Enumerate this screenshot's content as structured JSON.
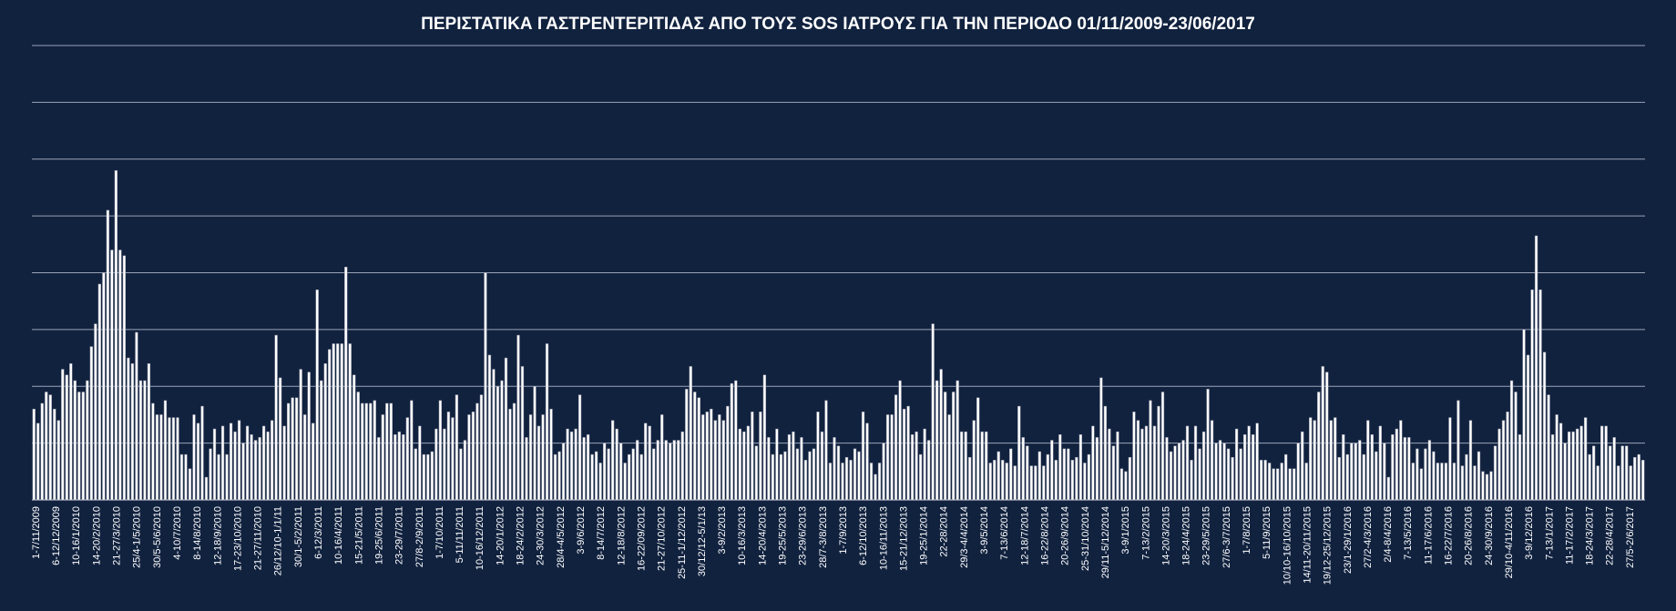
{
  "colors": {
    "background": "#11223f",
    "bar_fill": "#ffffff",
    "bar_stroke": "#8a8fa0",
    "grid": "#9aa3b5",
    "text": "#ffffff"
  },
  "chart_data": {
    "type": "bar",
    "title": "ΠΕΡΙΣΤΑΤΙΚΑ ΓΑΣΤΡΕΝΤΕΡΙΤΙΔΑΣ ΑΠΟ ΤΟΥΣ SOS ΙΑΤΡΟΥΣ ΓΙΑ ΤΗΝ ΠΕΡΙΟΔΟ 01/11/2009-23/06/2017",
    "xlabel": "",
    "ylabel": "",
    "ylim": [
      0,
      80
    ],
    "yticks": [
      0,
      10,
      20,
      30,
      40,
      50,
      60,
      70,
      80
    ],
    "show_y_tick_labels": false,
    "grid": true,
    "legend": "none",
    "x_tick_labels": [
      "1-7/11/2009",
      "6-12/12/2009",
      "10-16/1/2010",
      "14-20/2/2010",
      "21-27/3/2010",
      "25/4-1/5/2010",
      "30/5-5/6/2010",
      "4-10/7/2010",
      "8-14/8/2010",
      "12-18/9/2010",
      "17-23/10/2010",
      "21-27/11/2010",
      "26/12/10-1/1/11",
      "30/1-5/2/2011",
      "6-12/3/2011",
      "10-16/4/2011",
      "15-21/5/2011",
      "19-25/6/2011",
      "23-29/7/2011",
      "27/8-2/9/2011",
      "1-7/10/2011",
      "5-11/11/2011",
      "10-16/12/2011",
      "14-20/1/2012",
      "18-24/2/2012",
      "24-30/3/2012",
      "28/4-4/5/2012",
      "3-9/6/2012",
      "8-14/7/2012",
      "12-18/8/2012",
      "16-22/09/2012",
      "21-27/10/2012",
      "25-11-1/12/2012",
      "30/12/12-5/1/13",
      "3-9/2/2013",
      "10-16/3/2013",
      "14-20/4/2013",
      "19-25/5/2013",
      "23-29/6/2013",
      "28/7-3/8/2013",
      "1-7/9/2013",
      "6-12/10/2013",
      "10-16/11/2013",
      "15-21/12/2013",
      "19-25/1/2014",
      "22-28/2014",
      "29/3-4/4/2014",
      "3-9/5/2014",
      "7-13/6/2014",
      "12-18/7/2014",
      "16-22/8/2014",
      "20-26/9/2014",
      "25-31/10/2014",
      "29/11-5/12/2014",
      "3-9/1/2015",
      "7-13/2/2015",
      "14-20/3/2015",
      "18-24/4/2015",
      "23-29/5/2015",
      "27/6-3/7/2015",
      "1-7/8/2015",
      "5-11/9/2015",
      "10/10-16/10/2015",
      "14/11-20/11/2015",
      "19/12-25/12/2015",
      "23/1-29/1/2016",
      "27/2-4/3/2016",
      "2/4-8/4/2016",
      "7-13/5/2016",
      "11-17/6/2016",
      "16-22/7/2016",
      "20-26/8/2016",
      "24-30/9/2016",
      "29/10-4/11/2016",
      "3-9/12/2016",
      "7-13/1/2017",
      "11-17/2/2017",
      "18-24/3/2017",
      "22-28/4/2017",
      "27/5-2/6/2017"
    ],
    "values": [
      16,
      13.5,
      17,
      19,
      18.5,
      16,
      14,
      23,
      22,
      24,
      21,
      19,
      19,
      21,
      27,
      31,
      38,
      40,
      51,
      44,
      58,
      44,
      43,
      25,
      24,
      29.5,
      21,
      21,
      24,
      17,
      15,
      15,
      17.5,
      14.5,
      14.5,
      14.5,
      8,
      8,
      5.5,
      15,
      13.5,
      16.5,
      4,
      9,
      12.5,
      8,
      13,
      8,
      13.5,
      12,
      14,
      10,
      13,
      11.5,
      10.5,
      11,
      13,
      12,
      14,
      29,
      21.5,
      13,
      17,
      18,
      18,
      23,
      15,
      22.5,
      13.5,
      37,
      21,
      24,
      26.5,
      27.5,
      27.5,
      27.5,
      41,
      27.5,
      22,
      19,
      17,
      17,
      17,
      17.5,
      11,
      15,
      17,
      17,
      11.5,
      12,
      11.5,
      14.5,
      17.5,
      9,
      13,
      8,
      8,
      8.5,
      12.5,
      17.5,
      12.5,
      15.5,
      14.5,
      18.5,
      9,
      10.5,
      15,
      15.5,
      17,
      18.5,
      40,
      25.5,
      23,
      20,
      21,
      25,
      16,
      17,
      29,
      23.5,
      11,
      15,
      20,
      13,
      15,
      27.5,
      16,
      8,
      8.5,
      10,
      12.5,
      12,
      12.5,
      18.5,
      11,
      11.5,
      8,
      8.5,
      6.5,
      10,
      9,
      14,
      12.5,
      10,
      6.5,
      8,
      9,
      10.5,
      8,
      13.5,
      13,
      9,
      10.5,
      15,
      10.5,
      10,
      10.5,
      10.5,
      12,
      19.5,
      23.5,
      19,
      18,
      15,
      15.5,
      16,
      14,
      15,
      14,
      16.5,
      20.5,
      21,
      12.5,
      12,
      13,
      15.5,
      9.5,
      15.5,
      22,
      11,
      8,
      12.5,
      8,
      8.5,
      11.5,
      12,
      9,
      11,
      7,
      8.5,
      9,
      15.5,
      12,
      17.5,
      6.5,
      11,
      9.5,
      6.5,
      7.5,
      7,
      9,
      8.5,
      15.5,
      13.5,
      6.5,
      4.5,
      6.5,
      10,
      15,
      15,
      18.5,
      21,
      16,
      16.5,
      11.5,
      12,
      8,
      12.5,
      10.5,
      31,
      21,
      23,
      19,
      15,
      19,
      21,
      12,
      12,
      7.5,
      14,
      18,
      12,
      12,
      6.5,
      7,
      8.5,
      7,
      6.5,
      9,
      6,
      16.5,
      11,
      9.5,
      6,
      6,
      8.5,
      6,
      8,
      10.5,
      7,
      11.5,
      9,
      9,
      7,
      7.5,
      11.5,
      6.5,
      8,
      13,
      11,
      21.5,
      16.5,
      12.5,
      9.5,
      12,
      5.5,
      5,
      7.5,
      15.5,
      14,
      12.5,
      13,
      17.5,
      13,
      16.5,
      19,
      11,
      8.5,
      9.5,
      10,
      10.5,
      13,
      7,
      13,
      9,
      12,
      19.5,
      14,
      10,
      10.5,
      10,
      9,
      7.5,
      12.5,
      9,
      11.5,
      13,
      11.5,
      13.5,
      7,
      7,
      6.5,
      5.5,
      5.5,
      6.5,
      8,
      5.5,
      5.5,
      10,
      12,
      6.5,
      14.5,
      14,
      19,
      23.5,
      22.5,
      14,
      14.5,
      7.5,
      11.5,
      8,
      10,
      10,
      10.5,
      8,
      14,
      11.5,
      8.5,
      13,
      10,
      4,
      11.5,
      12.5,
      14,
      11,
      11,
      6.5,
      9,
      5.5,
      9,
      10.5,
      8.5,
      6.5,
      6.5,
      6.5,
      14.5,
      6.5,
      17.5,
      6,
      8,
      14,
      6,
      8.5,
      5,
      4.5,
      5,
      9.5,
      12.5,
      14,
      15.5,
      21,
      19,
      11.5,
      30,
      25.5,
      37,
      46.5,
      37,
      26,
      18.5,
      11.5,
      15,
      13.5,
      10,
      12,
      12,
      12.5,
      13,
      14.5,
      8,
      9.5,
      6,
      13,
      13,
      9.5,
      11,
      6,
      9.5,
      9.5,
      6,
      7.5,
      8,
      7
    ]
  }
}
